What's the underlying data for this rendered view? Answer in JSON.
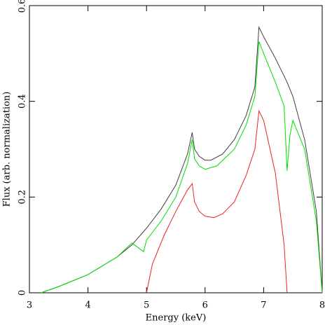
{
  "chart_data": {
    "type": "line",
    "xlabel": "Energy (keV)",
    "ylabel": "Flux (arb. normalization)",
    "xlim": [
      3,
      8
    ],
    "ylim": [
      0,
      0.6
    ],
    "xticks": [
      3,
      4,
      5,
      6,
      7,
      8
    ],
    "yticks": [
      0,
      0.2,
      0.4,
      0.6
    ],
    "series": [
      {
        "color": "#404040",
        "x": [
          3.2,
          3.5,
          4.0,
          4.5,
          4.75,
          5.0,
          5.25,
          5.5,
          5.7,
          5.78,
          5.82,
          5.9,
          6.0,
          6.1,
          6.3,
          6.5,
          6.7,
          6.85,
          6.92,
          7.0,
          7.2,
          7.4,
          7.5,
          7.7,
          7.9,
          8.0
        ],
        "values": [
          0,
          0.013,
          0.038,
          0.075,
          0.1,
          0.135,
          0.175,
          0.225,
          0.29,
          0.335,
          0.3,
          0.285,
          0.277,
          0.277,
          0.29,
          0.32,
          0.37,
          0.43,
          0.555,
          0.535,
          0.49,
          0.44,
          0.41,
          0.32,
          0.17,
          0
        ]
      },
      {
        "color": "#00dd00",
        "x": [
          3.2,
          3.5,
          4.0,
          4.5,
          4.75,
          4.95,
          5.0,
          5.25,
          5.5,
          5.7,
          5.78,
          5.82,
          5.9,
          6.0,
          6.2,
          6.5,
          6.7,
          6.85,
          6.92,
          7.0,
          7.2,
          7.35,
          7.4,
          7.45,
          7.5,
          7.7,
          7.9,
          8.0
        ],
        "values": [
          0,
          0.013,
          0.038,
          0.075,
          0.104,
          0.086,
          0.11,
          0.15,
          0.2,
          0.27,
          0.32,
          0.28,
          0.265,
          0.258,
          0.265,
          0.3,
          0.35,
          0.41,
          0.525,
          0.5,
          0.44,
          0.39,
          0.255,
          0.33,
          0.36,
          0.3,
          0.15,
          0
        ]
      },
      {
        "color": "#ee2222",
        "x": [
          5.0,
          5.1,
          5.3,
          5.5,
          5.7,
          5.78,
          5.82,
          5.9,
          6.0,
          6.15,
          6.3,
          6.5,
          6.7,
          6.85,
          6.92,
          7.0,
          7.2,
          7.35,
          7.4
        ],
        "values": [
          0,
          0.06,
          0.12,
          0.17,
          0.215,
          0.228,
          0.19,
          0.17,
          0.16,
          0.157,
          0.165,
          0.19,
          0.245,
          0.3,
          0.38,
          0.36,
          0.25,
          0.1,
          0
        ]
      }
    ]
  }
}
